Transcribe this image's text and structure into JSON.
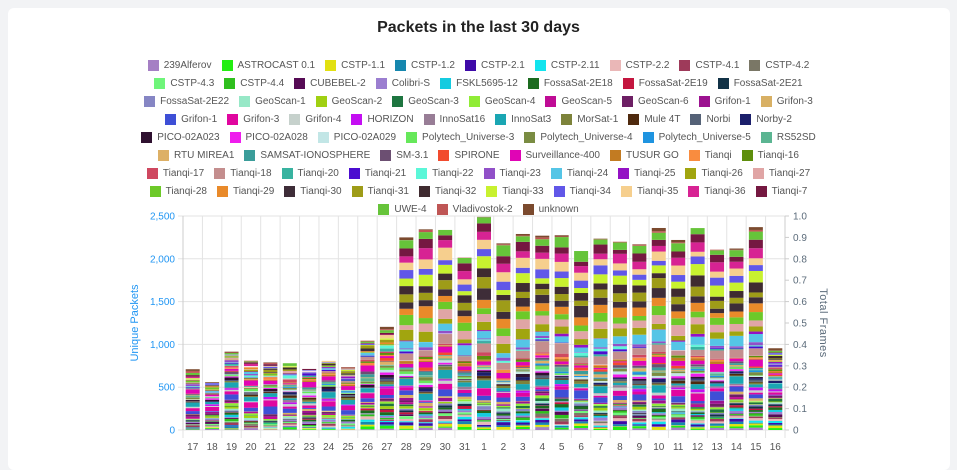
{
  "chart_data": {
    "type": "bar",
    "stacked": true,
    "title": "Packets in the last 30 days",
    "ylabel": "Unique Packets",
    "y2label": "Total Frames",
    "ylim": [
      0,
      2500
    ],
    "y2lim": [
      0,
      1.0
    ],
    "yticks": [
      "0",
      "500",
      "1,000",
      "1,500",
      "2,000",
      "2,500"
    ],
    "y2ticks": [
      "0",
      "0.1",
      "0.2",
      "0.3",
      "0.4",
      "0.5",
      "0.6",
      "0.7",
      "0.8",
      "0.9",
      "1.0"
    ],
    "grid": true,
    "legend_position": "top",
    "categories": [
      "17",
      "18",
      "19",
      "20",
      "21",
      "22",
      "23",
      "24",
      "25",
      "26",
      "27",
      "28",
      "29",
      "30",
      "31",
      "1",
      "2",
      "3",
      "4",
      "5",
      "6",
      "7",
      "8",
      "9",
      "10",
      "11",
      "12",
      "13",
      "14",
      "15",
      "16"
    ],
    "totals": [
      710,
      560,
      915,
      810,
      790,
      780,
      715,
      815,
      735,
      1045,
      1205,
      2250,
      2345,
      2340,
      2015,
      2490,
      2180,
      2290,
      2270,
      2275,
      2095,
      2235,
      2200,
      2170,
      2360,
      2220,
      2360,
      2110,
      2120,
      2370,
      955
    ],
    "series": [
      {
        "name": "239Alferov",
        "color": "#a57fc4"
      },
      {
        "name": "ASTROCAST 0.1",
        "color": "#22ee11"
      },
      {
        "name": "CSTP-1.1",
        "color": "#e2e011"
      },
      {
        "name": "CSTP-1.2",
        "color": "#1687ae"
      },
      {
        "name": "CSTP-2.1",
        "color": "#3e0aa8"
      },
      {
        "name": "CSTP-2.11",
        "color": "#12e4ee"
      },
      {
        "name": "CSTP-2.2",
        "color": "#eab7b7"
      },
      {
        "name": "CSTP-4.1",
        "color": "#9e3a5a"
      },
      {
        "name": "CSTP-4.2",
        "color": "#7a7766"
      },
      {
        "name": "CSTP-4.3",
        "color": "#6ff57a"
      },
      {
        "name": "CSTP-4.4",
        "color": "#2fbf1e"
      },
      {
        "name": "CUBEBEL-2",
        "color": "#560b55"
      },
      {
        "name": "Colibri-S",
        "color": "#9b7ed0"
      },
      {
        "name": "FSKL5695-12",
        "color": "#15cbe0"
      },
      {
        "name": "FossaSat-2E18",
        "color": "#1c6b1f"
      },
      {
        "name": "FossaSat-2E19",
        "color": "#c4163f"
      },
      {
        "name": "FossaSat-2E21",
        "color": "#123247"
      },
      {
        "name": "FossaSat-2E22",
        "color": "#8686c4"
      },
      {
        "name": "GeoScan-1",
        "color": "#97e8c7"
      },
      {
        "name": "GeoScan-2",
        "color": "#a0d012"
      },
      {
        "name": "GeoScan-3",
        "color": "#1e7540"
      },
      {
        "name": "GeoScan-4",
        "color": "#90ec36"
      },
      {
        "name": "GeoScan-5",
        "color": "#bf0c95"
      },
      {
        "name": "GeoScan-6",
        "color": "#6d1f64"
      },
      {
        "name": "Grifon-1",
        "color": "#9c1290"
      },
      {
        "name": "Grifon-3",
        "color": "#d8b064"
      },
      {
        "name": "Grifon-1",
        "color": "#3e4fd6"
      },
      {
        "name": "Grifon-3",
        "color": "#e0069f"
      },
      {
        "name": "Grifon-4",
        "color": "#c6d1cc"
      },
      {
        "name": "HORIZON",
        "color": "#c40ef2"
      },
      {
        "name": "InnoSat16",
        "color": "#987d96"
      },
      {
        "name": "InnoSat3",
        "color": "#1aa6b3"
      },
      {
        "name": "MorSat-1",
        "color": "#7d833b"
      },
      {
        "name": "Mule 4T",
        "color": "#4f2a0e"
      },
      {
        "name": "Norbi",
        "color": "#556277"
      },
      {
        "name": "Norby-2",
        "color": "#1b1f6b"
      },
      {
        "name": "PICO-02A023",
        "color": "#2f1130"
      },
      {
        "name": "PICO-02A028",
        "color": "#ef1ded"
      },
      {
        "name": "PICO-02A029",
        "color": "#c2e6e6"
      },
      {
        "name": "Polytech_Universe-3",
        "color": "#66e85a"
      },
      {
        "name": "Polytech_Universe-4",
        "color": "#7a8c42"
      },
      {
        "name": "Polytech_Universe-5",
        "color": "#1f94e0"
      },
      {
        "name": "RS52SD",
        "color": "#5bb592"
      },
      {
        "name": "RTU MIREA1",
        "color": "#ddb066"
      },
      {
        "name": "SAMSAT-IONOSPHERE",
        "color": "#3b9d9a"
      },
      {
        "name": "SM-3.1",
        "color": "#6c4f72"
      },
      {
        "name": "SPIRONE",
        "color": "#f24b2e"
      },
      {
        "name": "Surveillance-400",
        "color": "#e005b5"
      },
      {
        "name": "TUSUR GO",
        "color": "#c27b22"
      },
      {
        "name": "Tianqi",
        "color": "#f98c3f"
      },
      {
        "name": "Tianqi-16",
        "color": "#5e8e0c"
      },
      {
        "name": "Tianqi-17",
        "color": "#cf4860"
      },
      {
        "name": "Tianqi-18",
        "color": "#c48e8e"
      },
      {
        "name": "Tianqi-20",
        "color": "#38b3a0"
      },
      {
        "name": "Tianqi-21",
        "color": "#4b0dd0"
      },
      {
        "name": "Tianqi-22",
        "color": "#5bf7d8"
      },
      {
        "name": "Tianqi-23",
        "color": "#9150c8"
      },
      {
        "name": "Tianqi-24",
        "color": "#55c5e6"
      },
      {
        "name": "Tianqi-25",
        "color": "#9412c4"
      },
      {
        "name": "Tianqi-26",
        "color": "#a1a50f"
      },
      {
        "name": "Tianqi-27",
        "color": "#e0a5a5"
      },
      {
        "name": "Tianqi-28",
        "color": "#6dc929"
      },
      {
        "name": "Tianqi-29",
        "color": "#e98a2a"
      },
      {
        "name": "Tianqi-30",
        "color": "#3e2d38"
      },
      {
        "name": "Tianqi-31",
        "color": "#9e9c18"
      },
      {
        "name": "Tianqi-32",
        "color": "#3f2b30"
      },
      {
        "name": "Tianqi-33",
        "color": "#c8f12f"
      },
      {
        "name": "Tianqi-34",
        "color": "#6157e8"
      },
      {
        "name": "Tianqi-35",
        "color": "#f6cf8e"
      },
      {
        "name": "Tianqi-36",
        "color": "#d72393"
      },
      {
        "name": "Tianqi-7",
        "color": "#751841"
      },
      {
        "name": "UWE-4",
        "color": "#66c43a"
      },
      {
        "name": "Vladivostok-2",
        "color": "#bf5655"
      },
      {
        "name": "unknown",
        "color": "#7b4a2e"
      }
    ]
  }
}
